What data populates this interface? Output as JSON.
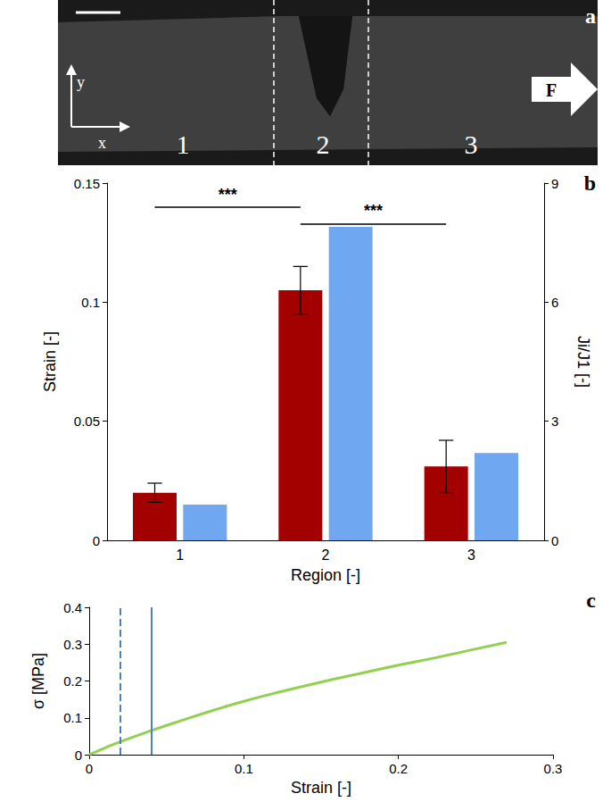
{
  "image_panel": {
    "title": "a",
    "region_labels": [
      "1",
      "2",
      "3"
    ],
    "force_label": "F",
    "x_label": "x",
    "y_label": "y"
  },
  "chart_data": [
    {
      "type": "bar",
      "title": "b",
      "categories": [
        "1",
        "2",
        "3"
      ],
      "x_label": "Region [-]",
      "y_label": "Strain [-]",
      "y2_label": "Ji/J1 [-]",
      "ylim": [
        0,
        0.15
      ],
      "yticks": [
        0,
        0.05,
        0.1,
        0.15
      ],
      "y2lim": [
        0,
        9
      ],
      "y2ticks": [
        0,
        3,
        6,
        9
      ],
      "grid": false,
      "series": [
        {
          "color": "#a30000",
          "values": [
            0.02,
            0.105,
            0.031
          ],
          "errors": [
            0.004,
            0.01,
            0.011
          ]
        },
        {
          "color": "#6fa8f0",
          "values": [
            0.9,
            7.9,
            2.2
          ],
          "axis": "y2"
        }
      ],
      "significance": [
        {
          "from": "1",
          "to": "2",
          "y": 0.14,
          "label": "***"
        },
        {
          "from": "2",
          "to": "3",
          "y": 0.133,
          "label": "***"
        }
      ]
    },
    {
      "type": "line",
      "title": "c",
      "x": [
        0,
        0.01,
        0.02,
        0.04,
        0.06,
        0.08,
        0.1,
        0.125,
        0.15,
        0.175,
        0.2,
        0.225,
        0.25,
        0.27
      ],
      "series": [
        {
          "color": "#92d050",
          "values": [
            0,
            0.018,
            0.035,
            0.065,
            0.093,
            0.12,
            0.145,
            0.172,
            0.197,
            0.22,
            0.243,
            0.264,
            0.287,
            0.305
          ]
        }
      ],
      "x_label": "Strain [-]",
      "y_label": "σ [MPa]",
      "xlim": [
        0,
        0.3
      ],
      "xticks": [
        0,
        0.1,
        0.2,
        0.3
      ],
      "ylim": [
        0,
        0.4
      ],
      "yticks": [
        0,
        0.1,
        0.2,
        0.3,
        0.4
      ],
      "grid": false,
      "vlines": [
        {
          "x": 0.02,
          "color": "#4f81bd",
          "line_style": "dashed"
        },
        {
          "x": 0.04,
          "color": "#4f81bd",
          "line_style": "solid"
        }
      ]
    }
  ]
}
